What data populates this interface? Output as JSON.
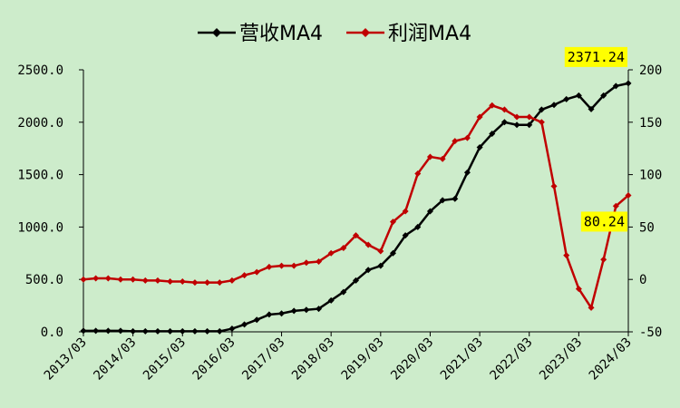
{
  "chart_data": {
    "type": "line",
    "categories": [
      "2013/03",
      null,
      null,
      null,
      "2014/03",
      null,
      null,
      null,
      "2015/03",
      null,
      null,
      null,
      "2016/03",
      null,
      null,
      null,
      "2017/03",
      null,
      null,
      null,
      "2018/03",
      null,
      null,
      null,
      "2019/03",
      null,
      null,
      null,
      "2020/03",
      null,
      null,
      null,
      "2021/03",
      null,
      null,
      null,
      "2022/03",
      null,
      null,
      null,
      "2023/03",
      null,
      null,
      null,
      "2024/03"
    ],
    "series": [
      {
        "name": "营收MA4",
        "color": "#000000",
        "label_last": true,
        "values": [
          10,
          10,
          10,
          10,
          5,
          5,
          5,
          5,
          5,
          5,
          5,
          5,
          30,
          70,
          115,
          165,
          175,
          200,
          210,
          220,
          300,
          380,
          490,
          590,
          630,
          750,
          920,
          1000,
          1150,
          1255,
          1270,
          1520,
          1760,
          1890,
          2000,
          1975,
          1975,
          2120,
          2165,
          2220,
          2255,
          2125,
          2255,
          2345,
          2371.24
        ]
      },
      {
        "name": "利润MA4",
        "color": "#c00000",
        "axis": "y2",
        "label_last": true,
        "values": [
          0,
          1,
          1,
          0,
          0,
          -1,
          -1,
          -2,
          -2,
          -3,
          -3,
          -3,
          -1,
          4,
          7,
          12,
          13,
          13,
          16,
          17,
          25,
          30,
          42,
          33,
          27,
          55,
          65,
          101,
          117,
          115,
          132,
          135,
          155,
          166,
          162,
          155,
          155,
          150,
          89,
          23,
          -9,
          -27,
          19,
          70,
          80.24
        ]
      }
    ],
    "ylim": [
      0,
      2500
    ],
    "yticks": [
      {
        "value": 0,
        "label": "0.0"
      },
      {
        "value": 500,
        "label": "500.0"
      },
      {
        "value": 1000,
        "label": "1000.0"
      },
      {
        "value": 1500,
        "label": "1500.0"
      },
      {
        "value": 2000,
        "label": "2000.0"
      },
      {
        "value": 2500,
        "label": "2500.0"
      }
    ],
    "y2lim": [
      -50,
      200
    ],
    "y2ticks": [
      -50,
      0,
      50,
      100,
      150,
      200
    ],
    "legend": "top"
  }
}
